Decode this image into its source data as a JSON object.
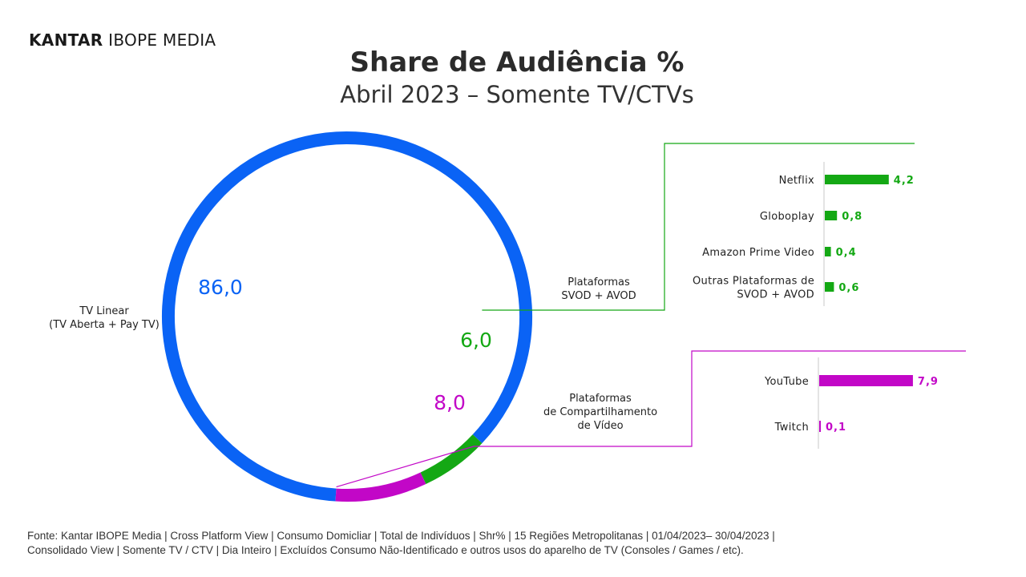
{
  "header": {
    "logo_brand": "KANTAR",
    "logo_rest": "IBOPE MEDIA",
    "title": "Share de Audiência %",
    "subtitle": "Abril 2023 – Somente TV/CTVs"
  },
  "colors": {
    "tv_linear": "#0A63F5",
    "svod": "#14A814",
    "video": "#C207C7"
  },
  "chart_data": [
    {
      "type": "pie",
      "title": "",
      "slices": [
        {
          "label": "TV Linear (TV Aberta + Pay TV)",
          "label_lines": [
            "TV Linear",
            "(TV Aberta + Pay TV)"
          ],
          "value": 86.0,
          "value_label": "86,0",
          "color": "#0A63F5"
        },
        {
          "label": "Plataformas SVOD + AVOD",
          "label_lines": [
            "Plataformas",
            "SVOD + AVOD"
          ],
          "value": 6.0,
          "value_label": "6,0",
          "color": "#14A814"
        },
        {
          "label": "Plataformas de Compartilhamento de Vídeo",
          "label_lines": [
            "Plataformas",
            "de Compartilhamento",
            "de Vídeo"
          ],
          "value": 8.0,
          "value_label": "8,0",
          "color": "#C207C7"
        }
      ]
    },
    {
      "type": "bar",
      "orientation": "horizontal",
      "title": "",
      "categories": [
        "Netflix",
        "Globoplay",
        "Amazon Prime Video",
        "Outras Plataformas de SVOD + AVOD"
      ],
      "category_lines": [
        [
          "Netflix"
        ],
        [
          "Globoplay"
        ],
        [
          "Amazon Prime Video"
        ],
        [
          "Outras Plataformas de",
          "SVOD + AVOD"
        ]
      ],
      "values": [
        4.2,
        0.8,
        0.4,
        0.6
      ],
      "value_labels": [
        "4,2",
        "0,8",
        "0,4",
        "0,6"
      ],
      "color": "#14A814"
    },
    {
      "type": "bar",
      "orientation": "horizontal",
      "title": "",
      "categories": [
        "YouTube",
        "Twitch"
      ],
      "category_lines": [
        [
          "YouTube"
        ],
        [
          "Twitch"
        ]
      ],
      "values": [
        7.9,
        0.1
      ],
      "value_labels": [
        "7,9",
        "0,1"
      ],
      "color": "#C207C7"
    }
  ],
  "footer": {
    "line1": "Fonte: Kantar IBOPE Media | Cross Platform View | Consumo Domicliar | Total de Indivíduos | Shr% | 15 Regiões Metropolitanas | 01/04/2023– 30/04/2023 |",
    "line2": "Consolidado View | Somente TV / CTV | Dia Inteiro | Excluídos Consumo Não-Identificado e outros usos do aparelho de TV (Consoles / Games / etc)."
  }
}
